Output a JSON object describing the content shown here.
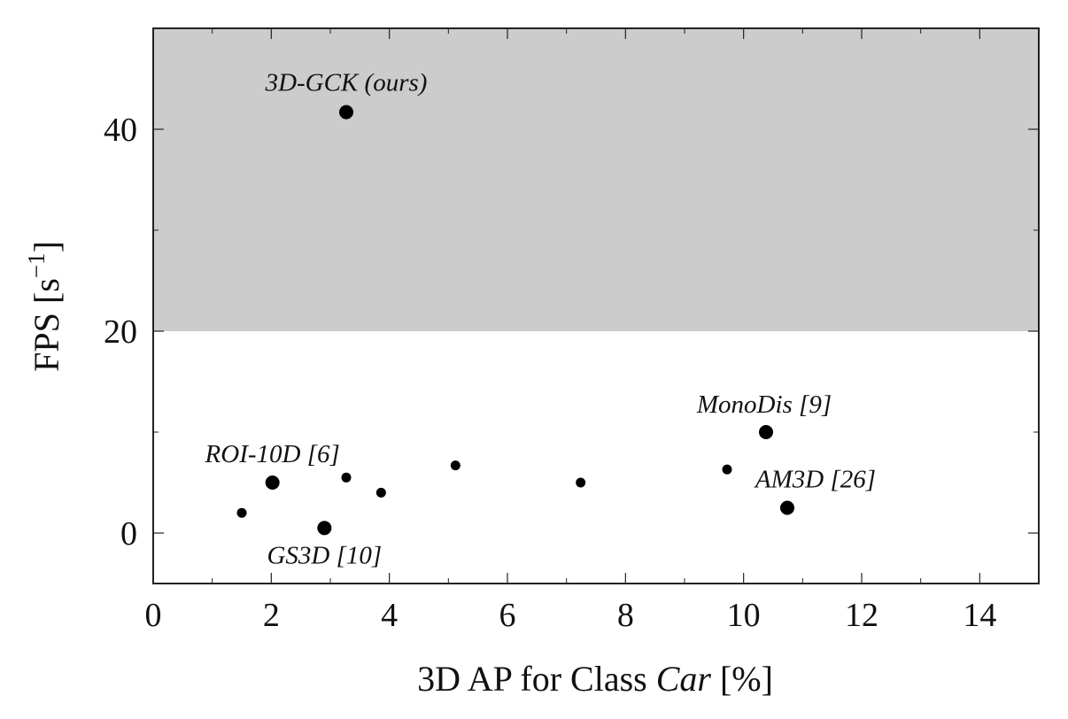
{
  "chart_data": {
    "type": "scatter",
    "xlabel_parts": [
      "3D AP for Class ",
      "Car",
      " [%]"
    ],
    "ylabel": "FPS [s",
    "ylabel_exponent": "−1",
    "ylabel_close": "]",
    "xlim": [
      0,
      15
    ],
    "ylim": [
      -5,
      50
    ],
    "xticks": [
      0,
      2,
      4,
      6,
      8,
      10,
      12,
      14
    ],
    "yticks": [
      0,
      20,
      40
    ],
    "shaded_region": {
      "y_from": 20,
      "y_to": 50,
      "color": "#cccccc"
    },
    "points": [
      {
        "x": 3.27,
        "y": 41.7,
        "size": "large",
        "label": "3D-GCK (ours)"
      },
      {
        "x": 10.38,
        "y": 10.0,
        "size": "large",
        "label": "MonoDis [9]"
      },
      {
        "x": 2.02,
        "y": 5.0,
        "size": "large",
        "label": "ROI-10D [6]"
      },
      {
        "x": 10.74,
        "y": 2.5,
        "size": "large",
        "label": "AM3D [26]"
      },
      {
        "x": 2.9,
        "y": 0.5,
        "size": "large",
        "label": "GS3D [10]"
      },
      {
        "x": 3.27,
        "y": 5.5,
        "size": "small",
        "label": ""
      },
      {
        "x": 3.86,
        "y": 4.0,
        "size": "small",
        "label": ""
      },
      {
        "x": 5.12,
        "y": 6.7,
        "size": "small",
        "label": ""
      },
      {
        "x": 7.24,
        "y": 5.0,
        "size": "small",
        "label": ""
      },
      {
        "x": 9.72,
        "y": 6.3,
        "size": "small",
        "label": ""
      },
      {
        "x": 1.5,
        "y": 2.0,
        "size": "small",
        "label": ""
      }
    ],
    "grid": false,
    "colors": {
      "point": "#000000",
      "shade": "#cccccc",
      "axis": "#222222"
    }
  }
}
